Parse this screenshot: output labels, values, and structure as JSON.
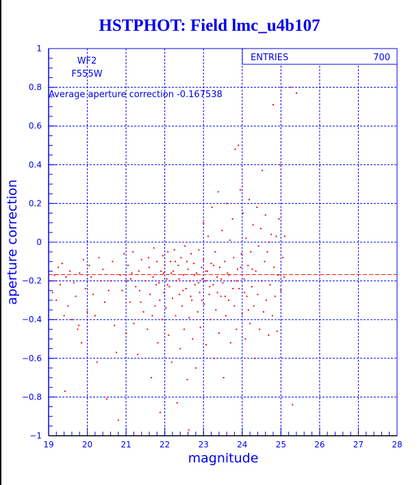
{
  "chart_data": {
    "type": "scatter",
    "title": "HSTPHOT: Field lmc_u4b107",
    "xlabel": "magnitude",
    "ylabel": "aperture correction",
    "xlim": [
      19,
      28
    ],
    "ylim": [
      -1,
      1
    ],
    "x_ticks": [
      "19",
      "20",
      "21",
      "22",
      "23",
      "24",
      "25",
      "26",
      "27",
      "28"
    ],
    "y_ticks": [
      "1",
      "0.8",
      "0.6",
      "0.4",
      "0.2",
      "0",
      "-0.2",
      "-0.4",
      "-0.6",
      "-0.8",
      "-1"
    ],
    "grid": true,
    "annotations": {
      "chip": "WF2",
      "filter": "F555W",
      "average_label": "Average aperture correction -0.167538"
    },
    "stats": {
      "label": "ENTRIES",
      "value": "700"
    },
    "mean_line": -0.167538,
    "colors": {
      "axis": "#0000ee",
      "points": "#ff0000"
    },
    "points": [
      [
        19.05,
        -0.2
      ],
      [
        19.1,
        -0.26
      ],
      [
        19.15,
        -0.17
      ],
      [
        19.2,
        -0.3
      ],
      [
        19.25,
        -0.13
      ],
      [
        19.3,
        -0.22
      ],
      [
        19.35,
        -0.11
      ],
      [
        19.4,
        -0.38
      ],
      [
        19.42,
        -0.77
      ],
      [
        19.45,
        -0.18
      ],
      [
        19.5,
        -0.33
      ],
      [
        19.55,
        -0.15
      ],
      [
        19.6,
        -0.4
      ],
      [
        19.65,
        -0.21
      ],
      [
        19.7,
        -0.28
      ],
      [
        19.75,
        -0.45
      ],
      [
        19.78,
        -0.43
      ],
      [
        19.8,
        -0.16
      ],
      [
        19.85,
        -0.52
      ],
      [
        19.9,
        -0.09
      ],
      [
        19.95,
        -0.24
      ],
      [
        20.0,
        -0.36
      ],
      [
        20.05,
        -0.12
      ],
      [
        20.1,
        -0.18
      ],
      [
        20.15,
        -0.27
      ],
      [
        20.2,
        -0.38
      ],
      [
        20.25,
        -0.62
      ],
      [
        20.3,
        -0.08
      ],
      [
        20.35,
        -0.2
      ],
      [
        20.4,
        -0.14
      ],
      [
        20.45,
        -0.31
      ],
      [
        20.5,
        -0.81
      ],
      [
        20.55,
        -0.25
      ],
      [
        20.6,
        -0.2
      ],
      [
        20.65,
        -0.1
      ],
      [
        20.7,
        -0.43
      ],
      [
        20.75,
        -0.57
      ],
      [
        20.8,
        -0.92
      ],
      [
        20.85,
        -0.17
      ],
      [
        20.9,
        -0.25
      ],
      [
        20.95,
        -0.06
      ],
      [
        21.0,
        -0.47
      ],
      [
        21.02,
        -0.2
      ],
      [
        21.05,
        -0.12
      ],
      [
        21.1,
        -0.31
      ],
      [
        21.12,
        -0.19
      ],
      [
        21.18,
        -0.05
      ],
      [
        21.2,
        -0.42
      ],
      [
        21.25,
        -0.23
      ],
      [
        21.3,
        -0.58
      ],
      [
        21.33,
        -0.15
      ],
      [
        21.38,
        -0.31
      ],
      [
        21.4,
        -0.09
      ],
      [
        21.45,
        -0.36
      ],
      [
        21.5,
        -0.2
      ],
      [
        21.55,
        -0.45
      ],
      [
        21.6,
        -0.13
      ],
      [
        21.62,
        -0.27
      ],
      [
        21.65,
        -0.7
      ],
      [
        21.7,
        -0.18
      ],
      [
        21.72,
        -0.03
      ],
      [
        21.75,
        -0.33
      ],
      [
        21.8,
        -0.1
      ],
      [
        21.82,
        -0.52
      ],
      [
        21.85,
        -0.21
      ],
      [
        21.88,
        -0.88
      ],
      [
        21.9,
        -0.15
      ],
      [
        21.93,
        -0.4
      ],
      [
        21.95,
        -0.07
      ],
      [
        21.98,
        -0.26
      ],
      [
        22.0,
        -0.12
      ],
      [
        22.03,
        -0.34
      ],
      [
        22.05,
        -0.19
      ],
      [
        22.08,
        -0.05
      ],
      [
        22.1,
        -0.48
      ],
      [
        22.12,
        -0.23
      ],
      [
        22.15,
        -0.1
      ],
      [
        22.18,
        -0.62
      ],
      [
        22.2,
        -0.29
      ],
      [
        22.22,
        -0.15
      ],
      [
        22.25,
        -0.04
      ],
      [
        22.28,
        -0.38
      ],
      [
        22.3,
        -0.2
      ],
      [
        22.32,
        -0.83
      ],
      [
        22.35,
        -0.12
      ],
      [
        22.38,
        -0.27
      ],
      [
        22.4,
        -0.55
      ],
      [
        22.42,
        -0.08
      ],
      [
        22.45,
        -0.33
      ],
      [
        22.48,
        -0.17
      ],
      [
        22.5,
        -0.45
      ],
      [
        22.52,
        -0.02
      ],
      [
        22.55,
        -0.24
      ],
      [
        22.58,
        -0.71
      ],
      [
        22.6,
        -0.14
      ],
      [
        22.62,
        -0.97
      ],
      [
        22.63,
        -0.39
      ],
      [
        22.65,
        -0.2
      ],
      [
        22.68,
        -0.06
      ],
      [
        22.7,
        -0.3
      ],
      [
        22.72,
        -0.5
      ],
      [
        22.75,
        -0.11
      ],
      [
        22.78,
        -0.22
      ],
      [
        22.8,
        -0.65
      ],
      [
        22.82,
        -0.16
      ],
      [
        22.85,
        -0.36
      ],
      [
        22.88,
        -0.04
      ],
      [
        22.9,
        -0.26
      ],
      [
        22.92,
        -0.44
      ],
      [
        22.95,
        -0.13
      ],
      [
        22.97,
        -0.19
      ],
      [
        23.0,
        -0.09
      ],
      [
        23.0,
        0.1
      ],
      [
        23.02,
        -0.32
      ],
      [
        23.05,
        -0.2
      ],
      [
        23.07,
        -0.53
      ],
      [
        23.1,
        -0.15
      ],
      [
        23.12,
        0.03
      ],
      [
        23.15,
        -0.27
      ],
      [
        23.18,
        -0.4
      ],
      [
        23.2,
        -0.11
      ],
      [
        23.22,
        0.18
      ],
      [
        23.25,
        -0.22
      ],
      [
        23.28,
        -0.6
      ],
      [
        23.3,
        -0.05
      ],
      [
        23.32,
        -0.35
      ],
      [
        23.35,
        -0.18
      ],
      [
        23.38,
        0.26
      ],
      [
        23.4,
        -0.47
      ],
      [
        23.42,
        -0.13
      ],
      [
        23.45,
        -0.28
      ],
      [
        23.48,
        0.06
      ],
      [
        23.5,
        -0.21
      ],
      [
        23.52,
        -0.7
      ],
      [
        23.55,
        -0.1
      ],
      [
        23.58,
        -0.38
      ],
      [
        23.6,
        0.2
      ],
      [
        23.62,
        -0.16
      ],
      [
        23.65,
        -0.3
      ],
      [
        23.68,
        0.01
      ],
      [
        23.7,
        -0.52
      ],
      [
        23.72,
        -0.2
      ],
      [
        23.75,
        0.12
      ],
      [
        23.78,
        -0.08
      ],
      [
        23.8,
        -0.33
      ],
      [
        23.82,
        0.48
      ],
      [
        23.85,
        -0.45
      ],
      [
        23.88,
        -0.14
      ],
      [
        23.9,
        0.5
      ],
      [
        23.92,
        -0.24
      ],
      [
        23.95,
        0.27
      ],
      [
        23.98,
        -0.06
      ],
      [
        24.0,
        -0.37
      ],
      [
        24.02,
        0.15
      ],
      [
        24.05,
        -0.19
      ],
      [
        24.08,
        -0.5
      ],
      [
        24.1,
        0.02
      ],
      [
        24.12,
        -0.28
      ],
      [
        24.15,
        -0.12
      ],
      [
        24.18,
        0.22
      ],
      [
        24.2,
        -0.42
      ],
      [
        24.22,
        -0.05
      ],
      [
        24.25,
        -0.23
      ],
      [
        24.28,
        0.09
      ],
      [
        24.3,
        -0.33
      ],
      [
        24.32,
        -0.6
      ],
      [
        24.35,
        -0.15
      ],
      [
        24.38,
        0.18
      ],
      [
        24.4,
        -0.27
      ],
      [
        24.42,
        -0.02
      ],
      [
        24.45,
        -0.45
      ],
      [
        24.48,
        0.07
      ],
      [
        24.5,
        -0.2
      ],
      [
        24.52,
        0.37
      ],
      [
        24.55,
        -0.36
      ],
      [
        24.58,
        -0.1
      ],
      [
        24.6,
        0.14
      ],
      [
        24.62,
        -0.3
      ],
      [
        24.65,
        -0.05
      ],
      [
        24.68,
        -0.48
      ],
      [
        24.7,
        0.0
      ],
      [
        24.72,
        -0.22
      ],
      [
        24.75,
        0.04
      ],
      [
        24.78,
        -0.38
      ],
      [
        24.8,
        0.71
      ],
      [
        24.82,
        -0.13
      ],
      [
        24.85,
        -0.28
      ],
      [
        24.88,
        0.03
      ],
      [
        24.9,
        -0.46
      ],
      [
        24.93,
        -0.17
      ],
      [
        24.95,
        0.12
      ],
      [
        24.98,
        0.4
      ],
      [
        25.0,
        -0.25
      ],
      [
        25.05,
        -0.08
      ],
      [
        25.1,
        0.03
      ],
      [
        25.25,
        0.8
      ],
      [
        25.3,
        -0.84
      ],
      [
        25.4,
        0.77
      ],
      [
        25.08,
        -0.18
      ],
      [
        21.15,
        -0.16
      ],
      [
        21.35,
        -0.25
      ],
      [
        21.58,
        -0.08
      ],
      [
        21.68,
        -0.38
      ],
      [
        21.78,
        -0.22
      ],
      [
        21.87,
        -0.3
      ],
      [
        21.97,
        -0.16
      ],
      [
        22.07,
        -0.22
      ],
      [
        22.17,
        -0.16
      ],
      [
        22.27,
        -0.1
      ],
      [
        22.37,
        -0.19
      ],
      [
        22.47,
        -0.25
      ],
      [
        22.57,
        -0.1
      ],
      [
        22.67,
        -0.28
      ],
      [
        22.77,
        -0.17
      ],
      [
        22.87,
        -0.21
      ],
      [
        22.96,
        -0.3
      ],
      [
        23.06,
        -0.15
      ],
      [
        23.16,
        -0.23
      ],
      [
        23.26,
        -0.12
      ],
      [
        23.36,
        -0.26
      ],
      [
        23.46,
        -0.19
      ],
      [
        23.56,
        -0.28
      ],
      [
        23.66,
        -0.17
      ],
      [
        23.76,
        -0.24
      ],
      [
        23.86,
        -0.2
      ],
      [
        23.96,
        -0.13
      ],
      [
        24.06,
        -0.26
      ],
      [
        24.16,
        -0.35
      ],
      [
        24.26,
        -0.14
      ]
    ]
  }
}
